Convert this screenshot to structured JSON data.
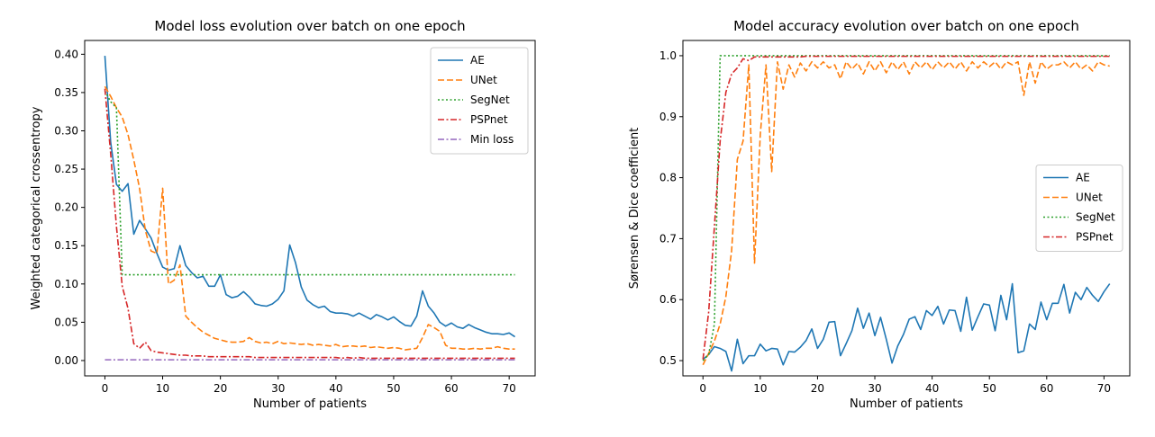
{
  "chart_data": [
    {
      "type": "line",
      "title": "Model loss evolution over batch on one epoch",
      "xlabel": "Number of patients",
      "ylabel": "Weighted categorical crossentropy",
      "xlim": [
        -3.5,
        74.5
      ],
      "ylim": [
        -0.02,
        0.418
      ],
      "xticks": [
        0,
        10,
        20,
        30,
        40,
        50,
        60,
        70
      ],
      "yticks": [
        0.0,
        0.05,
        0.1,
        0.15,
        0.2,
        0.25,
        0.3,
        0.35,
        0.4
      ],
      "ytick_labels": [
        "0.00",
        "0.05",
        "0.10",
        "0.15",
        "0.20",
        "0.25",
        "0.30",
        "0.35",
        "0.40"
      ],
      "legend_position": "top-right",
      "series": [
        {
          "name": "AE",
          "color": "#1f77b4",
          "dash": "solid",
          "values": [
            0.398,
            0.285,
            0.23,
            0.221,
            0.231,
            0.165,
            0.183,
            0.172,
            0.16,
            0.14,
            0.122,
            0.118,
            0.12,
            0.15,
            0.124,
            0.115,
            0.108,
            0.11,
            0.097,
            0.097,
            0.112,
            0.086,
            0.082,
            0.084,
            0.09,
            0.083,
            0.074,
            0.072,
            0.071,
            0.074,
            0.08,
            0.091,
            0.151,
            0.128,
            0.096,
            0.079,
            0.073,
            0.069,
            0.071,
            0.064,
            0.062,
            0.062,
            0.061,
            0.058,
            0.062,
            0.058,
            0.054,
            0.06,
            0.057,
            0.053,
            0.057,
            0.051,
            0.046,
            0.045,
            0.058,
            0.091,
            0.071,
            0.062,
            0.05,
            0.045,
            0.049,
            0.044,
            0.042,
            0.047,
            0.043,
            0.04,
            0.037,
            0.035,
            0.035,
            0.034,
            0.036,
            0.031
          ]
        },
        {
          "name": "UNet",
          "color": "#ff7f0e",
          "dash": "dashed",
          "values": [
            0.358,
            0.345,
            0.33,
            0.318,
            0.295,
            0.262,
            0.225,
            0.17,
            0.143,
            0.14,
            0.225,
            0.1,
            0.105,
            0.125,
            0.058,
            0.05,
            0.043,
            0.037,
            0.033,
            0.029,
            0.027,
            0.025,
            0.024,
            0.024,
            0.025,
            0.03,
            0.025,
            0.023,
            0.024,
            0.022,
            0.025,
            0.022,
            0.023,
            0.022,
            0.021,
            0.022,
            0.02,
            0.021,
            0.02,
            0.019,
            0.021,
            0.018,
            0.019,
            0.019,
            0.018,
            0.019,
            0.017,
            0.018,
            0.017,
            0.016,
            0.017,
            0.016,
            0.014,
            0.015,
            0.016,
            0.03,
            0.047,
            0.043,
            0.038,
            0.02,
            0.016,
            0.016,
            0.015,
            0.015,
            0.016,
            0.015,
            0.016,
            0.016,
            0.018,
            0.016,
            0.015,
            0.015
          ]
        },
        {
          "name": "SegNet",
          "color": "#2ca02c",
          "dash": "dotted",
          "values": [
            0.352,
            0.338,
            0.33,
            0.112,
            0.112,
            0.112,
            0.112,
            0.112,
            0.112,
            0.112,
            0.112,
            0.112,
            0.112,
            0.112,
            0.112,
            0.112,
            0.112,
            0.112,
            0.112,
            0.112,
            0.112,
            0.112,
            0.112,
            0.112,
            0.112,
            0.112,
            0.112,
            0.112,
            0.112,
            0.112,
            0.112,
            0.112,
            0.112,
            0.112,
            0.112,
            0.112,
            0.112,
            0.112,
            0.112,
            0.112,
            0.112,
            0.112,
            0.112,
            0.112,
            0.112,
            0.112,
            0.112,
            0.112,
            0.112,
            0.112,
            0.112,
            0.112,
            0.112,
            0.112,
            0.112,
            0.112,
            0.112,
            0.112,
            0.112,
            0.112,
            0.112,
            0.112,
            0.112,
            0.112,
            0.112,
            0.112,
            0.112,
            0.112,
            0.112,
            0.112,
            0.112,
            0.112
          ]
        },
        {
          "name": "PSPnet",
          "color": "#d62728",
          "dash": "dashdot",
          "values": [
            0.355,
            0.27,
            0.175,
            0.097,
            0.068,
            0.022,
            0.016,
            0.024,
            0.013,
            0.011,
            0.01,
            0.009,
            0.008,
            0.007,
            0.007,
            0.006,
            0.006,
            0.006,
            0.005,
            0.005,
            0.005,
            0.005,
            0.005,
            0.005,
            0.005,
            0.005,
            0.004,
            0.004,
            0.004,
            0.004,
            0.004,
            0.004,
            0.004,
            0.004,
            0.004,
            0.004,
            0.004,
            0.004,
            0.004,
            0.004,
            0.004,
            0.003,
            0.004,
            0.003,
            0.004,
            0.003,
            0.003,
            0.003,
            0.003,
            0.003,
            0.003,
            0.003,
            0.003,
            0.003,
            0.003,
            0.003,
            0.003,
            0.003,
            0.003,
            0.003,
            0.003,
            0.003,
            0.003,
            0.003,
            0.003,
            0.003,
            0.003,
            0.003,
            0.003,
            0.003,
            0.003,
            0.003
          ]
        },
        {
          "name": "Min loss",
          "color": "#9467bd",
          "dash": "dashdot",
          "values": [
            0.001,
            0.001,
            0.001,
            0.001,
            0.001,
            0.001,
            0.001,
            0.001,
            0.001,
            0.001,
            0.001,
            0.001,
            0.001,
            0.001,
            0.001,
            0.001,
            0.001,
            0.001,
            0.001,
            0.001,
            0.001,
            0.001,
            0.001,
            0.001,
            0.001,
            0.001,
            0.001,
            0.001,
            0.001,
            0.001,
            0.001,
            0.001,
            0.001,
            0.001,
            0.001,
            0.001,
            0.001,
            0.001,
            0.001,
            0.001,
            0.001,
            0.001,
            0.001,
            0.001,
            0.001,
            0.001,
            0.001,
            0.001,
            0.001,
            0.001,
            0.001,
            0.001,
            0.001,
            0.001,
            0.001,
            0.001,
            0.001,
            0.001,
            0.001,
            0.001,
            0.001,
            0.001,
            0.001,
            0.001,
            0.001,
            0.001,
            0.001,
            0.001,
            0.001,
            0.001,
            0.001,
            0.001
          ]
        }
      ]
    },
    {
      "type": "line",
      "title": "Model accuracy evolution over batch on one epoch",
      "xlabel": "Number of patients",
      "ylabel": "Sørensen & Dice coefficient",
      "xlim": [
        -3.5,
        74.5
      ],
      "ylim": [
        0.475,
        1.025
      ],
      "xticks": [
        0,
        10,
        20,
        30,
        40,
        50,
        60,
        70
      ],
      "yticks": [
        0.5,
        0.6,
        0.7,
        0.8,
        0.9,
        1.0
      ],
      "ytick_labels": [
        "0.5",
        "0.6",
        "0.7",
        "0.8",
        "0.9",
        "1.0"
      ],
      "legend_position": "center-right",
      "series": [
        {
          "name": "AE",
          "color": "#1f77b4",
          "dash": "solid",
          "values": [
            0.502,
            0.51,
            0.523,
            0.52,
            0.515,
            0.483,
            0.535,
            0.495,
            0.508,
            0.508,
            0.527,
            0.516,
            0.52,
            0.519,
            0.493,
            0.515,
            0.514,
            0.522,
            0.533,
            0.552,
            0.52,
            0.535,
            0.563,
            0.564,
            0.508,
            0.528,
            0.549,
            0.586,
            0.553,
            0.578,
            0.541,
            0.571,
            0.535,
            0.496,
            0.524,
            0.543,
            0.568,
            0.572,
            0.551,
            0.582,
            0.574,
            0.589,
            0.56,
            0.583,
            0.582,
            0.548,
            0.604,
            0.55,
            0.572,
            0.593,
            0.591,
            0.549,
            0.607,
            0.567,
            0.626,
            0.513,
            0.516,
            0.56,
            0.551,
            0.596,
            0.567,
            0.594,
            0.594,
            0.625,
            0.578,
            0.612,
            0.6,
            0.62,
            0.607,
            0.597,
            0.613,
            0.626
          ]
        },
        {
          "name": "UNet",
          "color": "#ff7f0e",
          "dash": "dashed",
          "values": [
            0.493,
            0.512,
            0.532,
            0.56,
            0.605,
            0.68,
            0.83,
            0.86,
            0.985,
            0.66,
            0.87,
            0.985,
            0.81,
            0.99,
            0.945,
            0.985,
            0.965,
            0.988,
            0.975,
            0.99,
            0.98,
            0.99,
            0.98,
            0.985,
            0.962,
            0.99,
            0.978,
            0.988,
            0.97,
            0.99,
            0.975,
            0.99,
            0.972,
            0.99,
            0.977,
            0.99,
            0.97,
            0.99,
            0.98,
            0.99,
            0.977,
            0.99,
            0.98,
            0.99,
            0.978,
            0.99,
            0.975,
            0.99,
            0.98,
            0.99,
            0.982,
            0.99,
            0.978,
            0.99,
            0.985,
            0.99,
            0.935,
            0.99,
            0.955,
            0.99,
            0.978,
            0.985,
            0.985,
            0.99,
            0.98,
            0.99,
            0.978,
            0.985,
            0.975,
            0.99,
            0.985,
            0.983
          ]
        },
        {
          "name": "SegNet",
          "color": "#2ca02c",
          "dash": "dotted",
          "values": [
            0.5,
            0.51,
            0.56,
            1.0,
            1.0,
            1.0,
            1.0,
            1.0,
            1.0,
            1.0,
            1.0,
            1.0,
            1.0,
            1.0,
            1.0,
            1.0,
            1.0,
            1.0,
            1.0,
            1.0,
            1.0,
            1.0,
            1.0,
            1.0,
            1.0,
            1.0,
            1.0,
            1.0,
            1.0,
            1.0,
            1.0,
            1.0,
            1.0,
            1.0,
            1.0,
            1.0,
            1.0,
            1.0,
            1.0,
            1.0,
            1.0,
            1.0,
            1.0,
            1.0,
            1.0,
            1.0,
            1.0,
            1.0,
            1.0,
            1.0,
            1.0,
            1.0,
            1.0,
            1.0,
            1.0,
            1.0,
            1.0,
            1.0,
            1.0,
            1.0,
            1.0,
            1.0,
            1.0,
            1.0,
            1.0,
            1.0,
            1.0,
            1.0,
            1.0,
            1.0,
            1.0,
            1.0
          ]
        },
        {
          "name": "PSPnet",
          "color": "#d62728",
          "dash": "dashdot",
          "values": [
            0.502,
            0.58,
            0.72,
            0.86,
            0.94,
            0.97,
            0.98,
            0.995,
            0.992,
            0.998,
            0.998,
            0.998,
            0.998,
            0.998,
            0.998,
            0.998,
            0.998,
            0.998,
            0.999,
            0.999,
            0.999,
            0.999,
            0.999,
            0.999,
            0.999,
            0.999,
            0.999,
            0.999,
            0.999,
            0.999,
            0.999,
            0.999,
            0.999,
            0.999,
            0.999,
            0.999,
            0.999,
            0.999,
            0.999,
            0.999,
            0.999,
            0.999,
            0.999,
            0.999,
            0.999,
            0.999,
            0.999,
            0.999,
            0.999,
            0.999,
            0.999,
            0.999,
            0.999,
            0.999,
            0.999,
            0.999,
            0.999,
            0.999,
            0.999,
            0.999,
            0.999,
            0.999,
            0.999,
            0.999,
            0.999,
            0.999,
            0.999,
            0.999,
            0.999,
            0.999,
            0.999,
            0.999
          ]
        }
      ]
    }
  ]
}
